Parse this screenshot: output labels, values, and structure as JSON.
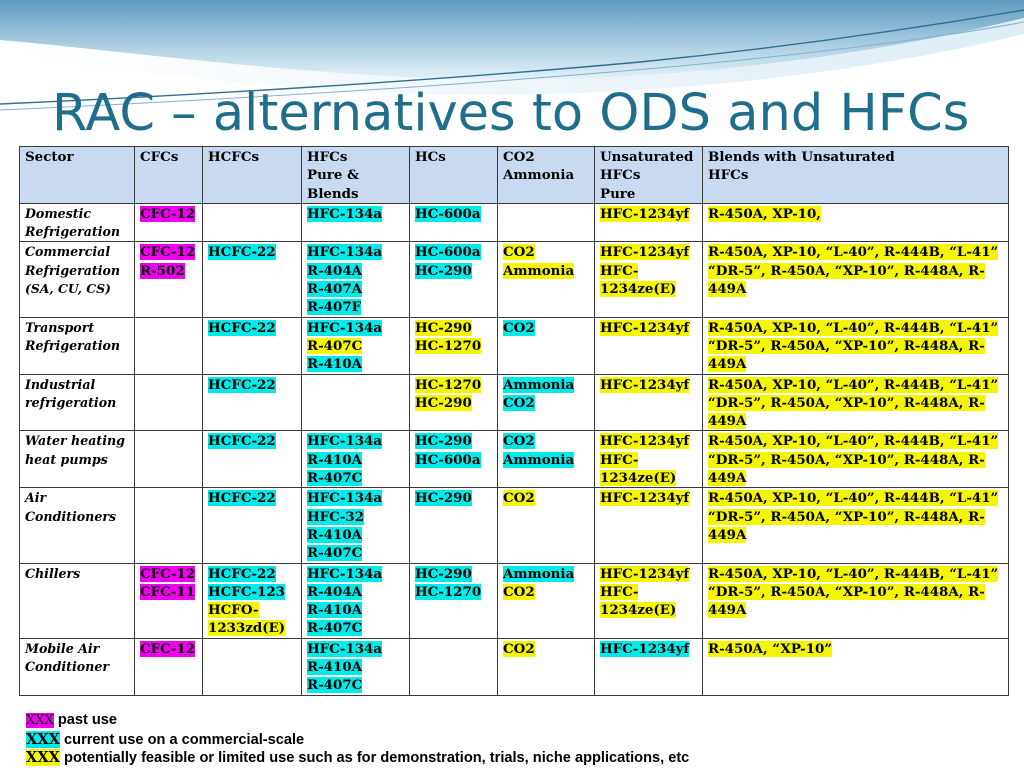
{
  "slide": {
    "title": "RAC – alternatives to ODS and HFCs"
  },
  "table": {
    "headers": [
      {
        "lines": [
          "Sector"
        ]
      },
      {
        "lines": [
          "CFCs"
        ]
      },
      {
        "lines": [
          "HCFCs"
        ]
      },
      {
        "lines": [
          "HFCs",
          "Pure &",
          "Blends"
        ]
      },
      {
        "lines": [
          "HCs"
        ]
      },
      {
        "lines": [
          "CO2",
          "Ammonia"
        ]
      },
      {
        "lines": [
          "Unsaturated",
          "HFCs",
          "Pure"
        ]
      },
      {
        "lines": [
          "Blends with Unsaturated",
          "HFCs"
        ]
      }
    ],
    "rows": [
      {
        "sector": [
          "Domestic",
          "Refrigeration"
        ],
        "cfcs": [
          {
            "text": "CFC-12",
            "use": "past"
          }
        ],
        "hcfcs": [],
        "hfcs": [
          {
            "text": "HFC-134a",
            "use": "current"
          }
        ],
        "hcs": [
          {
            "text": "HC-600a",
            "use": "current"
          }
        ],
        "co2": [],
        "unsat": [
          {
            "text": "HFC-1234yf",
            "use": "potential"
          }
        ],
        "blends": [
          {
            "text": "R-450A, XP-10,",
            "use": "potential"
          }
        ]
      },
      {
        "sector": [
          "Commercial",
          "Refrigeration",
          "(SA, CU, CS)"
        ],
        "cfcs": [
          {
            "text": "CFC-12",
            "use": "past"
          },
          {
            "text": "R-502",
            "use": "past"
          }
        ],
        "hcfcs": [
          {
            "text": "HCFC-22",
            "use": "current"
          }
        ],
        "hfcs": [
          {
            "text": "HFC-134a",
            "use": "current"
          },
          {
            "text": "R-404A",
            "use": "current"
          },
          {
            "text": "R-407A",
            "use": "current"
          },
          {
            "text": "R-407F",
            "use": "current"
          }
        ],
        "hcs": [
          {
            "text": "HC-600a",
            "use": "current"
          },
          {
            "text": "HC-290",
            "use": "current"
          }
        ],
        "co2": [
          {
            "text": "CO2",
            "use": "potential"
          },
          {
            "text": "Ammonia",
            "use": "potential"
          }
        ],
        "unsat": [
          {
            "text": "HFC-1234yf",
            "use": "potential"
          },
          {
            "text": "HFC-",
            "use": "potential"
          },
          {
            "text": "1234ze(E)",
            "use": "potential"
          }
        ],
        "blends": [
          {
            "text": "R-450A, XP-10, “L-40”, R-444B, “L-41”",
            "use": "potential"
          },
          {
            "text": "“DR-5”, R-450A, “XP-10”, R-448A, R-",
            "use": "potential"
          },
          {
            "text": "449A",
            "use": "potential"
          }
        ]
      },
      {
        "sector": [
          "Transport",
          "Refrigeration"
        ],
        "cfcs": [],
        "hcfcs": [
          {
            "text": "HCFC-22",
            "use": "current"
          }
        ],
        "hfcs": [
          {
            "text": "HFC-134a",
            "use": "current"
          },
          {
            "text": "R-407C",
            "use": "potential"
          },
          {
            "text": "R-410A",
            "use": "current"
          }
        ],
        "hcs": [
          {
            "text": "HC-290",
            "use": "potential"
          },
          {
            "text": "HC-1270",
            "use": "potential"
          }
        ],
        "co2": [
          {
            "text": "CO2",
            "use": "current"
          }
        ],
        "unsat": [
          {
            "text": "HFC-1234yf",
            "use": "potential"
          }
        ],
        "blends": [
          {
            "text": "R-450A, XP-10, “L-40”, R-444B, “L-41”",
            "use": "potential"
          },
          {
            "text": "“DR-5”, R-450A, “XP-10”, R-448A, R-",
            "use": "potential"
          },
          {
            "text": "449A",
            "use": "potential"
          }
        ]
      },
      {
        "sector": [
          "Industrial",
          "refrigeration"
        ],
        "cfcs": [],
        "hcfcs": [
          {
            "text": "HCFC-22",
            "use": "current"
          }
        ],
        "hfcs": [],
        "hcs": [
          {
            "text": "HC-1270",
            "use": "potential"
          },
          {
            "text": "HC-290",
            "use": "potential"
          }
        ],
        "co2": [
          {
            "text": "Ammonia",
            "use": "current"
          },
          {
            "text": "CO2",
            "use": "current"
          }
        ],
        "unsat": [
          {
            "text": "HFC-1234yf",
            "use": "potential"
          }
        ],
        "blends": [
          {
            "text": "R-450A, XP-10, “L-40”, R-444B, “L-41”",
            "use": "potential"
          },
          {
            "text": "“DR-5”, R-450A, “XP-10”, R-448A, R-",
            "use": "potential"
          },
          {
            "text": "449A",
            "use": "potential"
          }
        ]
      },
      {
        "sector": [
          "Water heating",
          "heat pumps"
        ],
        "cfcs": [],
        "hcfcs": [
          {
            "text": "HCFC-22",
            "use": "current"
          }
        ],
        "hfcs": [
          {
            "text": "HFC-134a",
            "use": "current"
          },
          {
            "text": "R-410A",
            "use": "current"
          },
          {
            "text": "R-407C",
            "use": "current"
          }
        ],
        "hcs": [
          {
            "text": "HC-290",
            "use": "current"
          },
          {
            "text": "HC-600a",
            "use": "current"
          }
        ],
        "co2": [
          {
            "text": "CO2",
            "use": "current"
          },
          {
            "text": "Ammonia",
            "use": "current"
          }
        ],
        "unsat": [
          {
            "text": "HFC-1234yf",
            "use": "potential"
          },
          {
            "text": "HFC-",
            "use": "potential"
          },
          {
            "text": "1234ze(E)",
            "use": "potential"
          }
        ],
        "blends": [
          {
            "text": "R-450A, XP-10, “L-40”, R-444B, “L-41”",
            "use": "potential"
          },
          {
            "text": "“DR-5”, R-450A, “XP-10”, R-448A, R-",
            "use": "potential"
          },
          {
            "text": "449A",
            "use": "potential"
          }
        ]
      },
      {
        "sector": [
          "Air",
          "Conditioners"
        ],
        "cfcs": [],
        "hcfcs": [
          {
            "text": "HCFC-22",
            "use": "current"
          }
        ],
        "hfcs": [
          {
            "text": "HFC-134a",
            "use": "current"
          },
          {
            "text": "HFC-32",
            "use": "current"
          },
          {
            "text": "R-410A",
            "use": "current"
          },
          {
            "text": "R-407C",
            "use": "current"
          }
        ],
        "hcs": [
          {
            "text": "HC-290",
            "use": "current"
          }
        ],
        "co2": [
          {
            "text": "CO2",
            "use": "potential"
          }
        ],
        "unsat": [
          {
            "text": "HFC-1234yf",
            "use": "potential"
          }
        ],
        "blends": [
          {
            "text": "R-450A, XP-10, “L-40”, R-444B, “L-41”",
            "use": "potential"
          },
          {
            "text": "“DR-5”, R-450A, “XP-10”, R-448A, R-",
            "use": "potential"
          },
          {
            "text": "449A",
            "use": "potential"
          }
        ]
      },
      {
        "sector": [
          "Chillers"
        ],
        "cfcs": [
          {
            "text": "CFC-12",
            "use": "past"
          },
          {
            "text": "CFC-11",
            "use": "past"
          }
        ],
        "hcfcs": [
          {
            "text": "HCFC-22",
            "use": "current"
          },
          {
            "text": "HCFC-123",
            "use": "current"
          },
          {
            "text": "HCFO-",
            "use": "potential"
          },
          {
            "text": "1233zd(E)",
            "use": "potential"
          }
        ],
        "hfcs": [
          {
            "text": "HFC-134a",
            "use": "current"
          },
          {
            "text": "R-404A",
            "use": "current"
          },
          {
            "text": "R-410A",
            "use": "current"
          },
          {
            "text": "R-407C",
            "use": "current"
          }
        ],
        "hcs": [
          {
            "text": "HC-290",
            "use": "current"
          },
          {
            "text": "HC-1270",
            "use": "current"
          }
        ],
        "co2": [
          {
            "text": "Ammonia",
            "use": "current"
          },
          {
            "text": "CO2",
            "use": "potential"
          }
        ],
        "unsat": [
          {
            "text": "HFC-1234yf",
            "use": "potential"
          },
          {
            "text": "HFC-",
            "use": "potential"
          },
          {
            "text": "1234ze(E)",
            "use": "potential"
          }
        ],
        "blends": [
          {
            "text": "R-450A, XP-10, “L-40”, R-444B, “L-41”",
            "use": "potential"
          },
          {
            "text": "“DR-5”, R-450A, “XP-10”, R-448A, R-",
            "use": "potential"
          },
          {
            "text": "449A",
            "use": "potential"
          }
        ]
      },
      {
        "sector": [
          "Mobile Air",
          "Conditioner"
        ],
        "cfcs": [
          {
            "text": "CFC-12",
            "use": "past"
          }
        ],
        "hcfcs": [],
        "hfcs": [
          {
            "text": "HFC-134a",
            "use": "current"
          },
          {
            "text": "R-410A",
            "use": "current"
          },
          {
            "text": "R-407C",
            "use": "current"
          }
        ],
        "hcs": [],
        "co2": [
          {
            "text": "CO2",
            "use": "potential"
          }
        ],
        "unsat": [
          {
            "text": "HFC-1234yf",
            "use": "current"
          }
        ],
        "blends": [
          {
            "text": "R-450A, “XP-10”",
            "use": "potential"
          }
        ]
      }
    ]
  },
  "legend": {
    "items": [
      {
        "swatch": "XXX",
        "label": "past use",
        "use": "past"
      },
      {
        "swatch": "XXX",
        "label": "current use on a commercial-scale",
        "use": "current"
      },
      {
        "swatch": "XXX",
        "label": "potentially feasible or limited use such as for demonstration, trials, niche applications, etc",
        "use": "potential"
      }
    ]
  },
  "colors": {
    "past": "#ee00ee",
    "current": "#00eaea",
    "potential": "#f5f500",
    "header_bg": "#c9d9ef",
    "title": "#1f6e8c"
  }
}
